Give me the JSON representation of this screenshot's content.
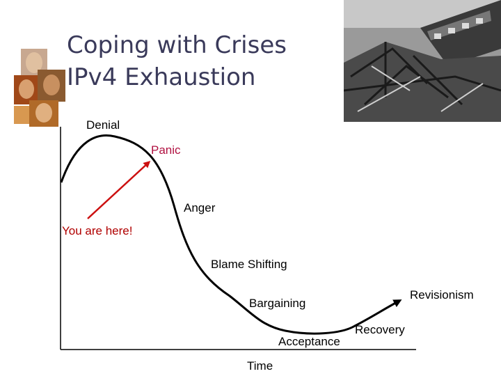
{
  "title": {
    "line1": "Coping with Crises",
    "line2": "IPv4 Exhaustion"
  },
  "stages": {
    "denial": "Denial",
    "panic": "Panic",
    "anger": "Anger",
    "you_are_here": "You are here!",
    "blame_shifting": "Blame Shifting",
    "bargaining": "Bargaining",
    "acceptance": "Acceptance",
    "recovery": "Recovery",
    "revisionism": "Revisionism"
  },
  "axis": {
    "x_label": "Time"
  },
  "colors": {
    "title": "#3a3a5a",
    "panic": "#b01040",
    "pointer_arrow": "#cc1010",
    "curve": "#000000"
  },
  "icons": {
    "decor_left": "faces-collage-image",
    "decor_right": "train-wreck-photo"
  }
}
